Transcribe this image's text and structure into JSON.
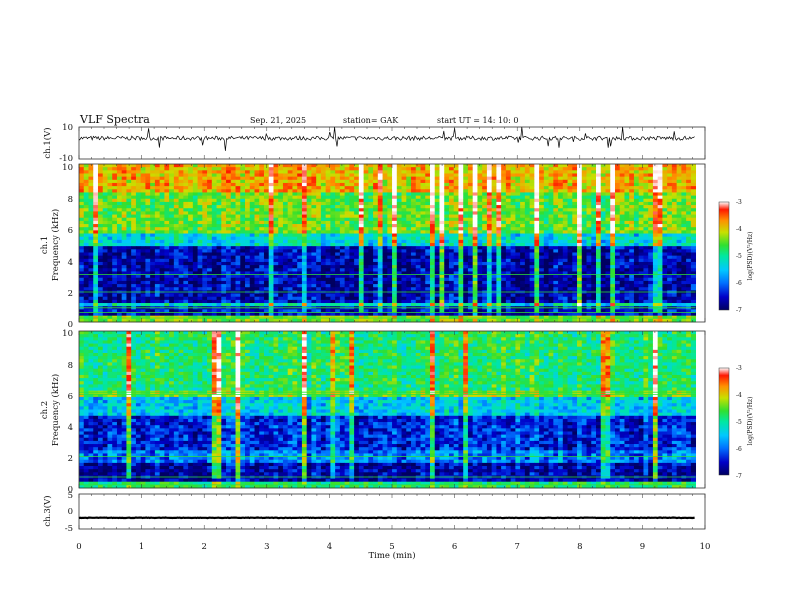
{
  "header": {
    "title": "VLF  Spectra",
    "date": "Sep. 21, 2025",
    "station": "station= GAK",
    "start": "start  UT  =    14: 10: 0"
  },
  "colors": {
    "spectrum_stops": [
      "#000060",
      "#0000c8",
      "#0070ff",
      "#00c8ff",
      "#00e8a0",
      "#30e030",
      "#c8e000",
      "#ff9000",
      "#ff1800",
      "#ffffff"
    ]
  },
  "chart_data": [
    {
      "id": "ch1-waveform",
      "type": "line",
      "ylabel": "ch.1(V)",
      "ylim": [
        -10,
        10
      ],
      "ytick_labels": [
        "10",
        "-10"
      ],
      "baseline": 3,
      "x_range": [
        0,
        9.85
      ]
    },
    {
      "id": "ch1-spectrogram",
      "type": "heatmap",
      "ylabel_line1": "ch.1",
      "ylabel_line2": "Frequency  (kHz)",
      "ylim": [
        0,
        10
      ],
      "ytick_labels": [
        "10",
        "8",
        "6",
        "4",
        "2",
        "0"
      ],
      "colorbar": {
        "label": "log(PSD)(V²/Hz)",
        "range": [
          -7,
          -3
        ],
        "tick_labels": [
          "-3",
          "-4",
          "-5",
          "-6",
          "-7"
        ]
      }
    },
    {
      "id": "ch2-spectrogram",
      "type": "heatmap",
      "ylabel_line1": "ch.2",
      "ylabel_line2": "Frequency  (kHz)",
      "ylim": [
        0,
        10
      ],
      "ytick_labels": [
        "10",
        "8",
        "6",
        "4",
        "2",
        "0"
      ],
      "colorbar": {
        "label": "log(PSD)(V²/Hz)",
        "range": [
          -7,
          -3
        ],
        "tick_labels": [
          "-3",
          "-4",
          "-5",
          "-6",
          "-7"
        ]
      }
    },
    {
      "id": "ch3-waveform",
      "type": "line",
      "ylabel": "ch.3(V)",
      "ylim": [
        -5,
        5
      ],
      "ytick_labels": [
        "5",
        "0",
        "-5"
      ],
      "baseline": -1.8,
      "x_range": [
        0,
        9.85
      ]
    }
  ],
  "x_axis": {
    "label": "Time  (min)",
    "range": [
      0,
      10
    ],
    "tick_labels": [
      "0",
      "1",
      "2",
      "3",
      "4",
      "5",
      "6",
      "7",
      "8",
      "9",
      "10"
    ]
  }
}
